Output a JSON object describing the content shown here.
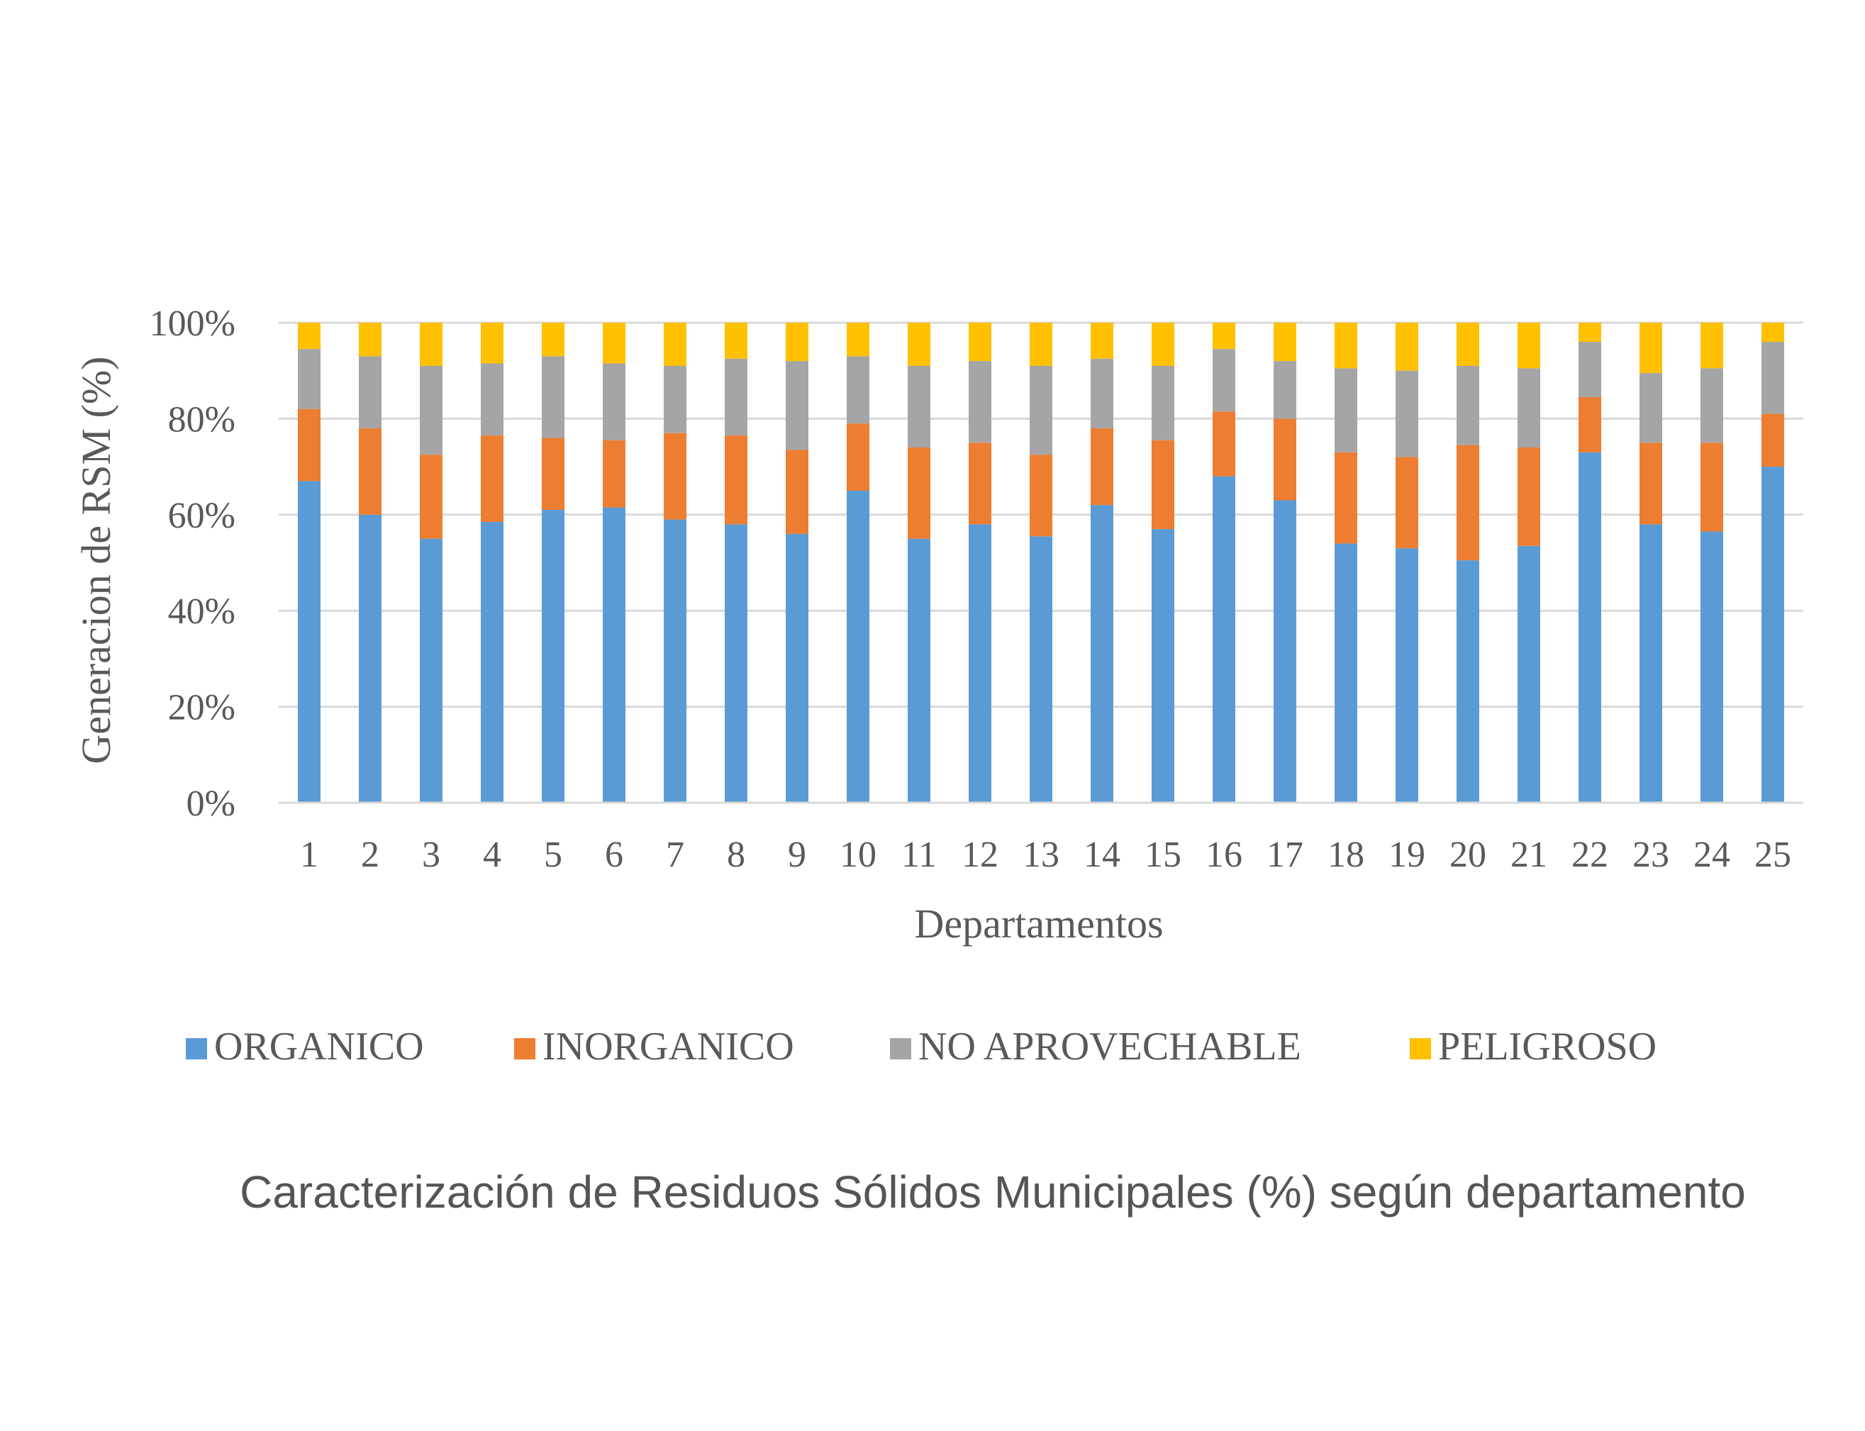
{
  "chart_data": {
    "type": "bar",
    "stacked": true,
    "percent_stacked": true,
    "caption": "Caracterización de Residuos Sólidos Municipales (%) según departamento",
    "xlabel": "Departamentos",
    "ylabel": "Generacion de RSM (%)",
    "ylim": [
      0,
      100
    ],
    "y_ticks": [
      "0%",
      "20%",
      "40%",
      "60%",
      "80%",
      "100%"
    ],
    "y_tick_values": [
      0,
      20,
      40,
      60,
      80,
      100
    ],
    "grid": true,
    "legend_position": "bottom",
    "categories": [
      "1",
      "2",
      "3",
      "4",
      "5",
      "6",
      "7",
      "8",
      "9",
      "10",
      "11",
      "12",
      "13",
      "14",
      "15",
      "16",
      "17",
      "18",
      "19",
      "20",
      "21",
      "22",
      "23",
      "24",
      "25"
    ],
    "series": [
      {
        "name": "ORGANICO",
        "color": "#5B9BD5",
        "values": [
          67,
          60,
          55,
          58.5,
          61,
          61.5,
          59,
          58,
          56,
          65,
          55,
          58,
          55.5,
          62,
          57,
          68,
          63,
          54,
          53,
          50.5,
          53.5,
          73,
          58,
          56.5,
          70
        ]
      },
      {
        "name": "INORGANICO",
        "color": "#ED7D31",
        "values": [
          15,
          18,
          17.5,
          18,
          15,
          14,
          18,
          18.5,
          17.5,
          14,
          19,
          17,
          17,
          16,
          18.5,
          13.5,
          17,
          19,
          19,
          24,
          20.5,
          11.5,
          17,
          18.5,
          11
        ]
      },
      {
        "name": "NO APROVECHABLE",
        "color": "#A5A5A5",
        "values": [
          12.5,
          15,
          18.5,
          15,
          17,
          16,
          14,
          16,
          18.5,
          14,
          17,
          17,
          18.5,
          14.5,
          15.5,
          13,
          12,
          17.5,
          18,
          16.5,
          16.5,
          11.5,
          14.5,
          15.5,
          15
        ]
      },
      {
        "name": "PELIGROSO",
        "color": "#FFC000",
        "values": [
          5.5,
          7,
          9,
          8.5,
          7,
          8.5,
          9,
          7.5,
          8,
          7,
          9,
          8,
          9,
          7.5,
          9,
          5.5,
          8,
          9.5,
          10,
          9,
          9.5,
          4,
          10.5,
          9.5,
          4
        ]
      }
    ]
  }
}
